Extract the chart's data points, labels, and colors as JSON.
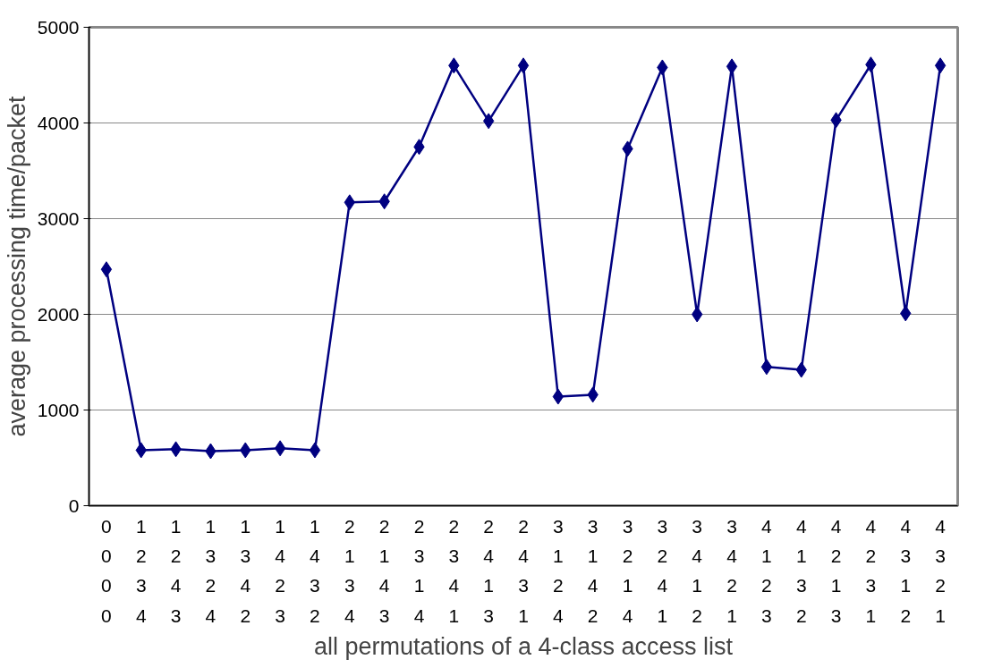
{
  "chart_data": {
    "type": "line",
    "xlabel": "all permutations of a 4-class access list",
    "ylabel": "average processing time/packet",
    "categories": [
      "0\n0\n0\n0",
      "1\n2\n3\n4",
      "1\n2\n4\n3",
      "1\n3\n2\n4",
      "1\n3\n4\n2",
      "1\n4\n2\n3",
      "1\n4\n3\n2",
      "2\n1\n3\n4",
      "2\n1\n4\n3",
      "2\n3\n1\n4",
      "2\n3\n4\n1",
      "2\n4\n1\n3",
      "2\n4\n3\n1",
      "3\n1\n2\n4",
      "3\n1\n4\n2",
      "3\n2\n1\n4",
      "3\n2\n4\n1",
      "3\n4\n1\n2",
      "3\n4\n2\n1",
      "4\n1\n2\n3",
      "4\n1\n3\n2",
      "4\n2\n1\n3",
      "4\n2\n3\n1",
      "4\n3\n1\n2",
      "4\n3\n2\n1"
    ],
    "series": [
      {
        "color": "#000080",
        "values": [
          2470,
          580,
          590,
          570,
          580,
          600,
          580,
          3170,
          3180,
          3750,
          4600,
          4020,
          4600,
          1140,
          1160,
          3730,
          4580,
          2000,
          4590,
          1450,
          1420,
          4030,
          4610,
          2010,
          4600
        ]
      }
    ],
    "ylim": [
      0,
      5000
    ],
    "yticks": [
      0,
      1000,
      2000,
      3000,
      4000,
      5000
    ],
    "grid": "y",
    "marker": "diamond",
    "line_style": "solid"
  }
}
